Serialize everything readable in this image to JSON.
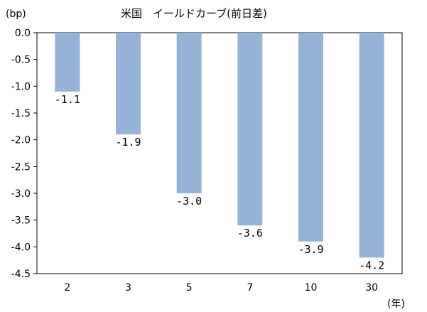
{
  "chart_data": {
    "type": "bar",
    "title": "米国　イールドカーブ(前日差)",
    "ylabel": "(bp)",
    "xlabel": "(年)",
    "categories": [
      "2",
      "3",
      "5",
      "7",
      "10",
      "30"
    ],
    "values": [
      -1.1,
      -1.9,
      -3.0,
      -3.6,
      -3.9,
      -4.2
    ],
    "data_labels": [
      "-1.1",
      "-1.9",
      "-3.0",
      "-3.6",
      "-3.9",
      "-4.2"
    ],
    "yticks": [
      "0.0",
      "-0.5",
      "-1.0",
      "-1.5",
      "-2.0",
      "-2.5",
      "-3.0",
      "-3.5",
      "-4.0",
      "-4.5"
    ],
    "ylim": [
      -4.5,
      0.0
    ],
    "grid": false,
    "bar_color": "#95b3d7"
  }
}
